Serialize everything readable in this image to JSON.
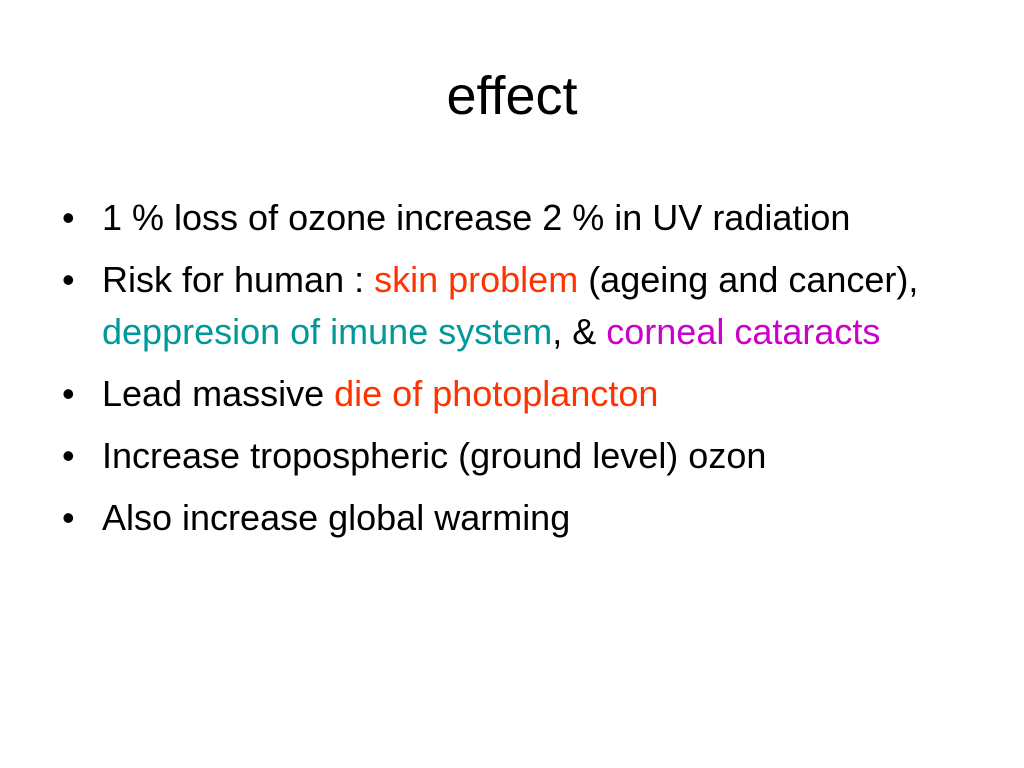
{
  "slide": {
    "title": "effect",
    "bullets": [
      {
        "parts": [
          "1 % loss of ozone increase 2 % in UV radiation"
        ]
      },
      {
        "parts": [
          "Risk for human :  ",
          "skin problem",
          " (ageing and cancer),  ",
          "deppresion of imune system",
          ", & ",
          "corneal cataracts"
        ]
      },
      {
        "parts": [
          "Lead  massive ",
          "die of photoplancton"
        ]
      },
      {
        "parts": [
          "Increase tropospheric (ground level) ozon"
        ]
      },
      {
        "parts": [
          "Also increase global warming"
        ]
      }
    ],
    "bullet_symbol": "•"
  },
  "colors": {
    "skin_problem": "#ff3300",
    "immune_system": "#009999",
    "cataracts": "#cc00cc",
    "photoplancton": "#ff3300"
  }
}
